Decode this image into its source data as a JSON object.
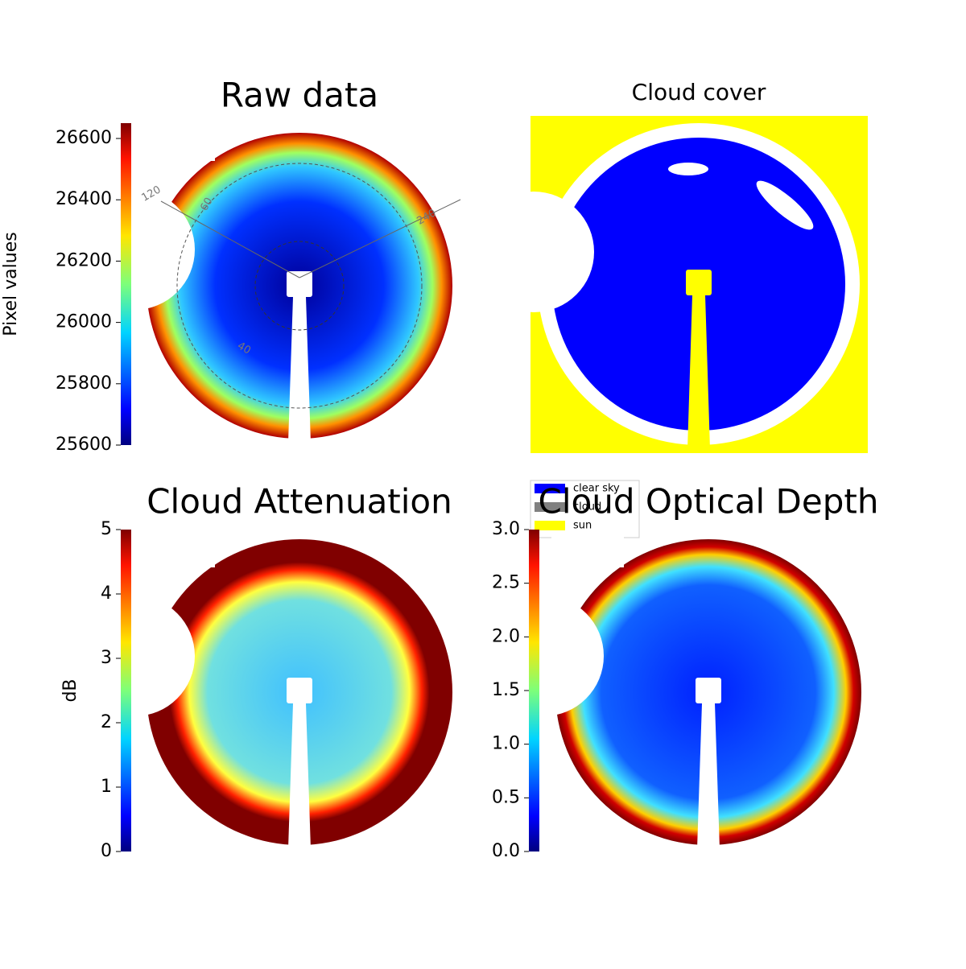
{
  "chart_data": [
    {
      "type": "image",
      "title": "Raw data",
      "colormap": "jet",
      "ylabel": "Pixel values",
      "ylim": [
        25600,
        26650
      ],
      "yticks": [
        25600,
        25800,
        26000,
        26200,
        26400,
        26600
      ],
      "annotations": [
        "120",
        "60",
        "240",
        "40"
      ]
    },
    {
      "type": "image",
      "title": "Cloud cover",
      "series": [
        {
          "name": "clear sky",
          "color": "#0000ff"
        },
        {
          "name": "cloud",
          "color": "#808080"
        },
        {
          "name": "sun",
          "color": "#ffff00"
        }
      ]
    },
    {
      "type": "image",
      "title": "Cloud Attenuation",
      "colormap": "jet",
      "ylabel": "dB",
      "ylim": [
        0,
        5
      ],
      "yticks": [
        0,
        1,
        2,
        3,
        4,
        5
      ]
    },
    {
      "type": "image",
      "title": "Cloud Optical Depth",
      "colormap": "jet",
      "ylim": [
        0,
        3
      ],
      "yticks": [
        {
          "value": 0,
          "label": "0.0"
        },
        0.5,
        {
          "value": 1,
          "label": "1.0"
        },
        1.5,
        {
          "value": 2,
          "label": "2.0"
        },
        2.5,
        {
          "value": 3,
          "label": "3.0"
        }
      ]
    }
  ]
}
